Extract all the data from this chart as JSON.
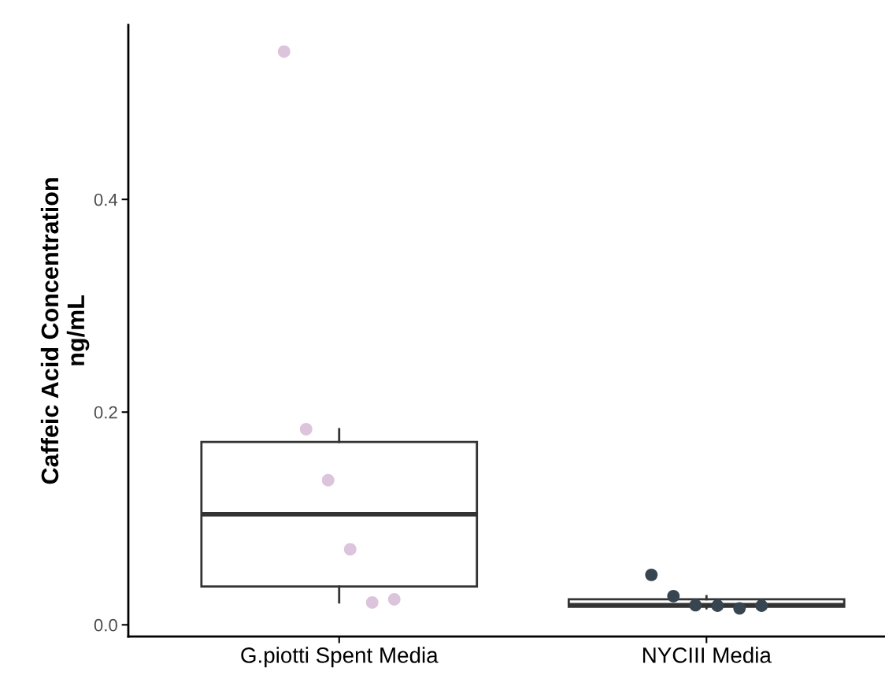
{
  "chart_data": {
    "type": "box",
    "categories": [
      "G.piotti Spent Media",
      "NYCIII Media"
    ],
    "ylabel": "Caffeic Acid Concentration\nng/mL",
    "ylim": [
      -0.011,
      0.564
    ],
    "yticks": [
      {
        "value": 0,
        "label": "0.0"
      },
      {
        "value": 0.2,
        "label": "0.2"
      },
      {
        "value": 0.4,
        "label": "0.4"
      }
    ],
    "grid": false,
    "legend": false,
    "boxes": [
      {
        "low": 0.021,
        "q1": 0.036,
        "median": 0.104,
        "q3": 0.172,
        "high": 0.184
      },
      {
        "low": 0.0155,
        "q1": 0.017,
        "median": 0.0185,
        "q3": 0.024,
        "high": 0.027
      }
    ],
    "series": [
      {
        "type": "scatter",
        "color": "#dcc4dc",
        "x": [
          "G.piotti Spent Media",
          "G.piotti Spent Media",
          "G.piotti Spent Media",
          "G.piotti Spent Media",
          "G.piotti Spent Media",
          "G.piotti Spent Media"
        ],
        "values": [
          0.539,
          0.184,
          0.136,
          0.071,
          0.021,
          0.024
        ]
      },
      {
        "type": "scatter",
        "color": "#36454f",
        "x": [
          "NYCIII Media",
          "NYCIII Media",
          "NYCIII Media",
          "NYCIII Media",
          "NYCIII Media",
          "NYCIII Media"
        ],
        "values": [
          0.047,
          0.027,
          0.0185,
          0.018,
          0.0155,
          0.018
        ]
      }
    ]
  }
}
